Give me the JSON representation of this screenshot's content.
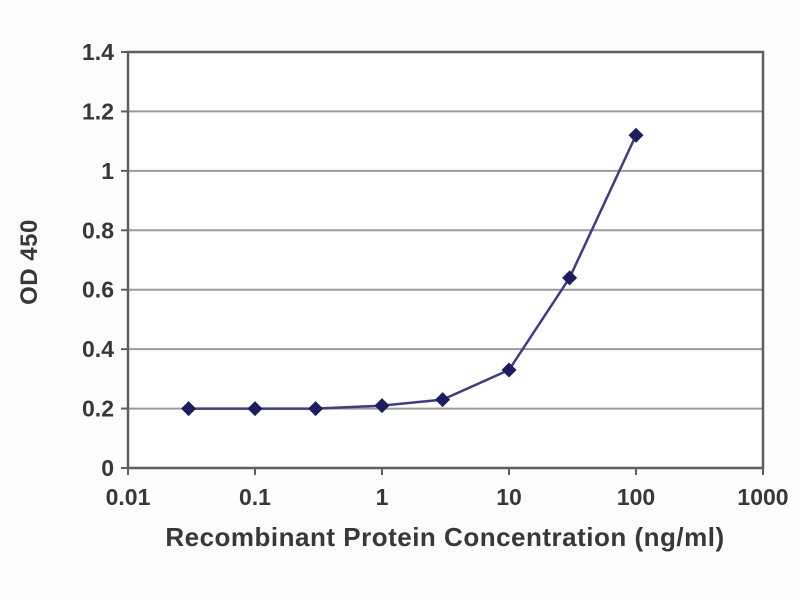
{
  "chart_data": {
    "type": "line",
    "title": "",
    "xlabel": "Recombinant Protein Concentration (ng/ml)",
    "ylabel": "OD 450",
    "x_scale": "log",
    "xlim": [
      0.01,
      1000
    ],
    "ylim": [
      0,
      1.4
    ],
    "x_ticks": [
      0.01,
      0.1,
      1,
      10,
      100,
      1000
    ],
    "x_tick_labels": [
      "0.01",
      "0.1",
      "1",
      "10",
      "100",
      "1000"
    ],
    "y_ticks": [
      0,
      0.2,
      0.4,
      0.6,
      0.8,
      1,
      1.2,
      1.4
    ],
    "y_tick_labels": [
      "0",
      "0.2",
      "0.4",
      "0.6",
      "0.8",
      "1",
      "1.2",
      "1.4"
    ],
    "grid": "horizontal",
    "legend": "none",
    "series": [
      {
        "marker": "diamond",
        "x": [
          0.03,
          0.1,
          0.3,
          1,
          3,
          10,
          30,
          100
        ],
        "y": [
          0.2,
          0.2,
          0.2,
          0.21,
          0.23,
          0.33,
          0.64,
          1.12
        ]
      }
    ],
    "colors": {
      "line": "#3e3e7c",
      "marker": "#1c1c5e",
      "grid": "#9b9b9b",
      "frame": "#5f5f5f",
      "text": "#383838",
      "background": "#fcfcfc"
    }
  }
}
